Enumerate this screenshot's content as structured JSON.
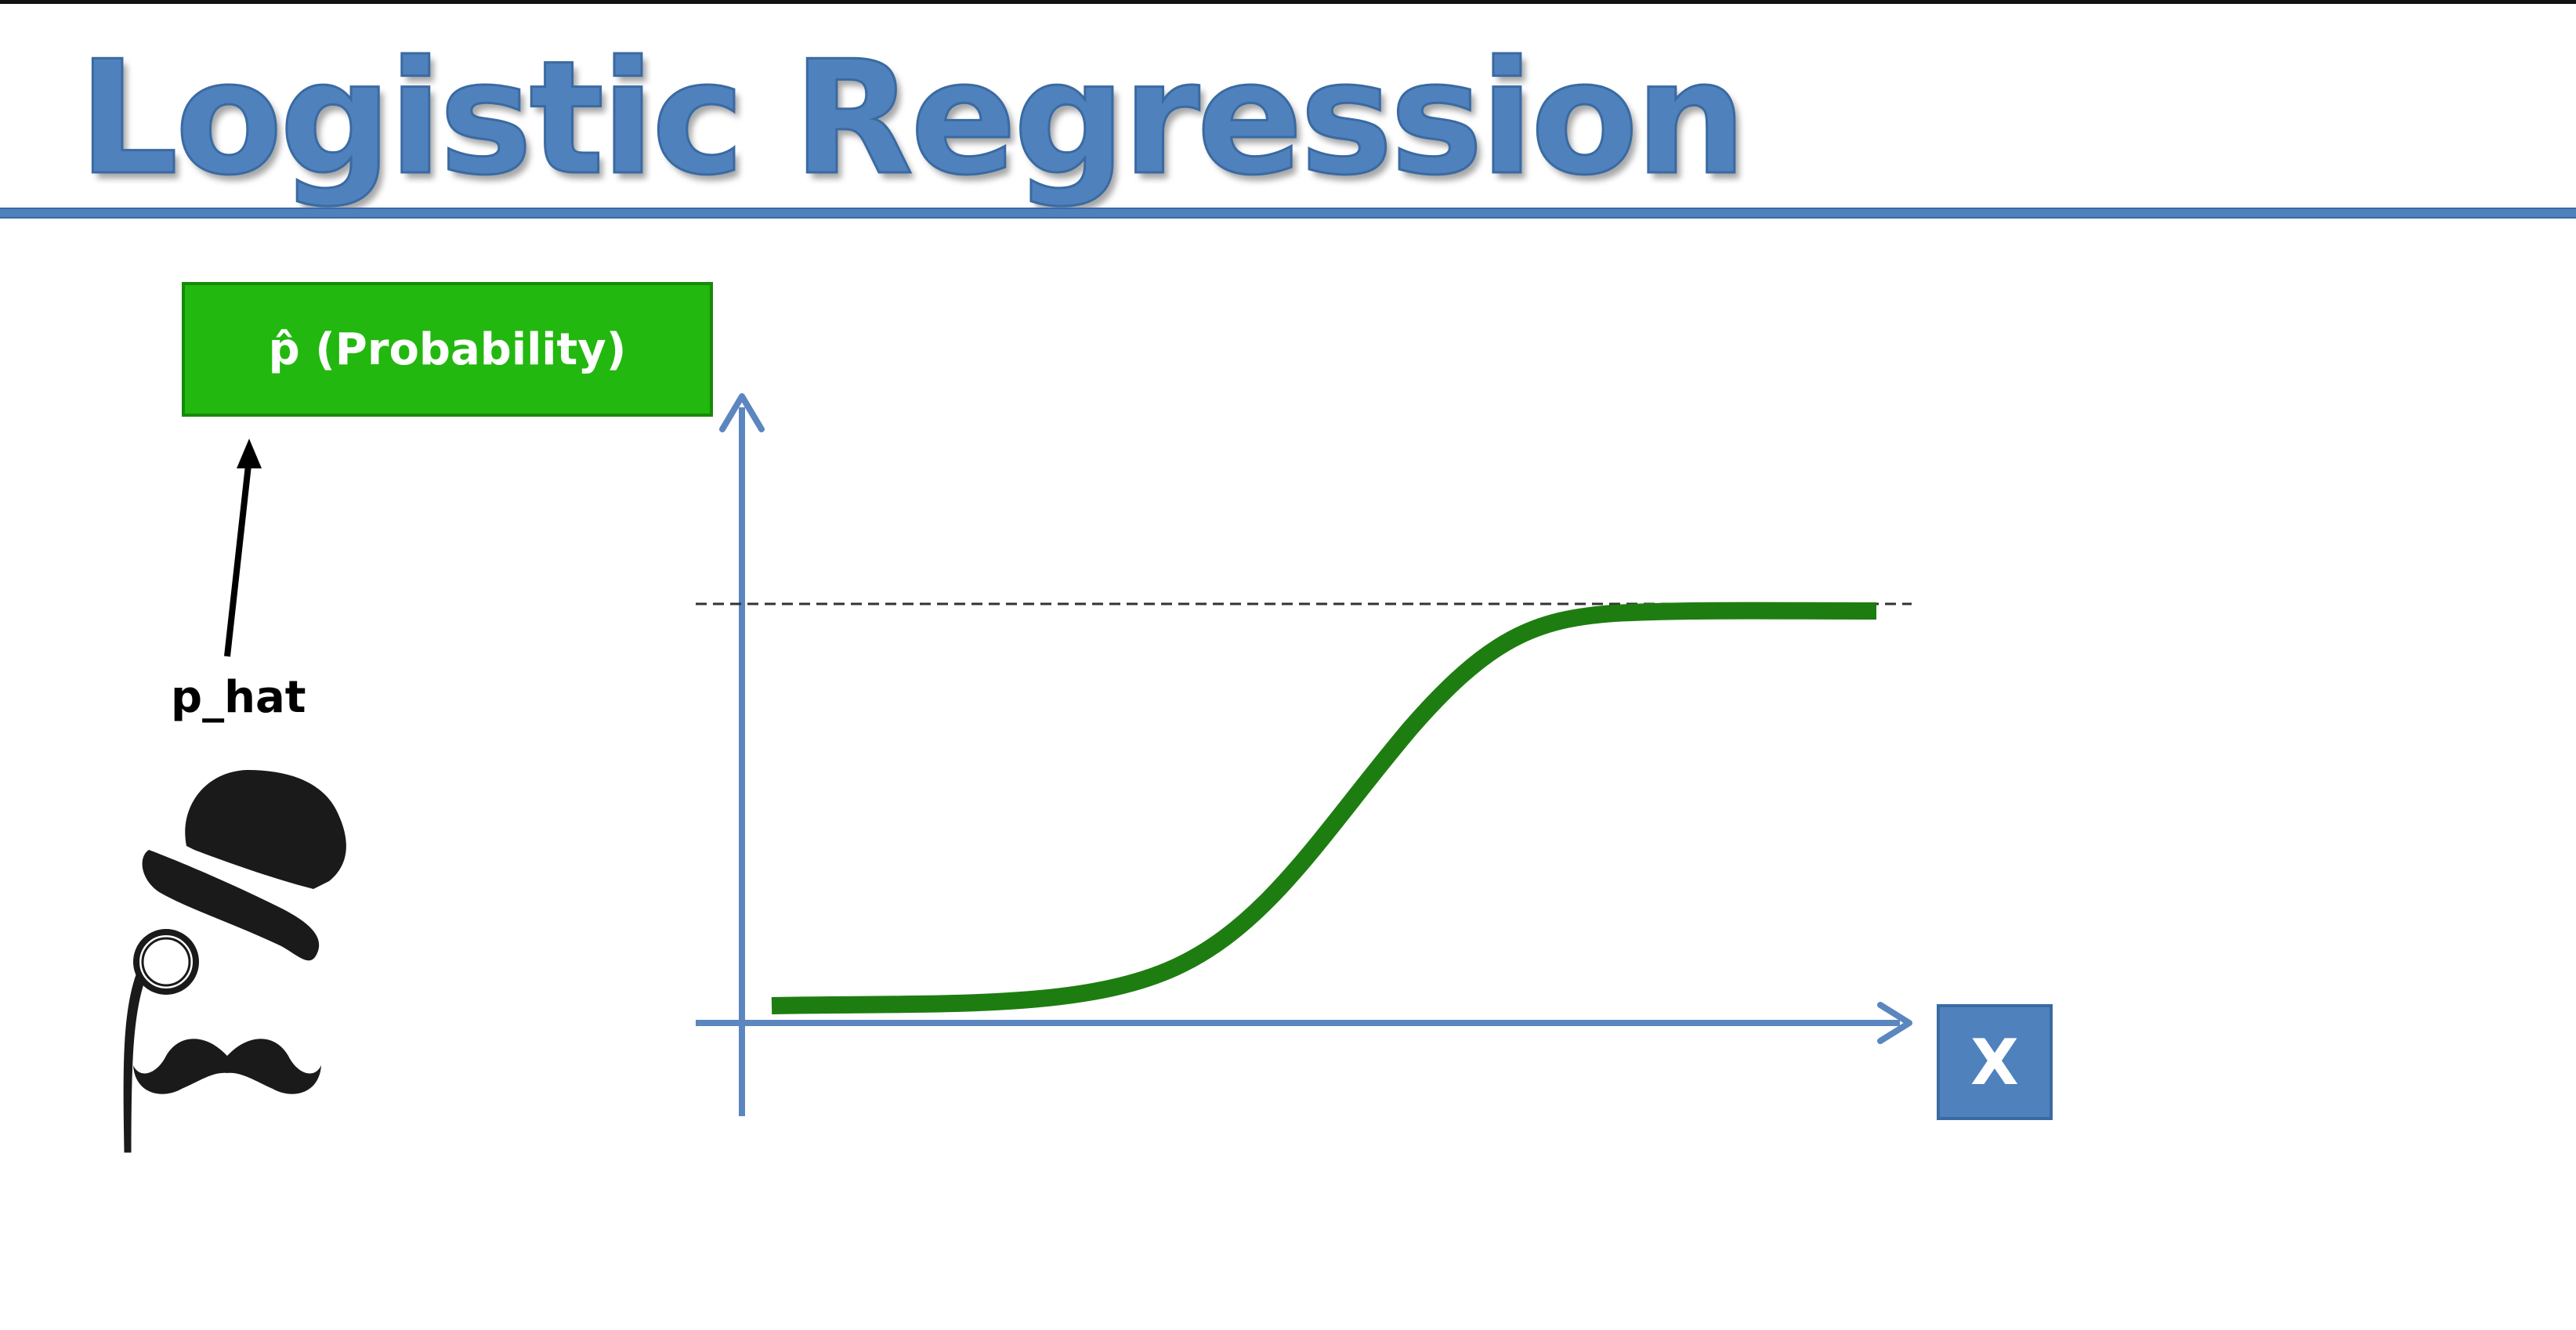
{
  "title": "Logistic Regression",
  "probability_box": {
    "label": "p̂ (Probability)"
  },
  "pointer_label": "p_hat",
  "x_box": {
    "label": "X"
  },
  "colors": {
    "title_blue": "#4f81bd",
    "axis_blue": "#5b86c0",
    "curve_green": "#1e7d10",
    "box_green": "#22b80f",
    "x_box_blue": "#4f81bd"
  },
  "icons": [
    "gentleman-top-hat-monocle-mustache-icon",
    "arrow-icon"
  ]
}
